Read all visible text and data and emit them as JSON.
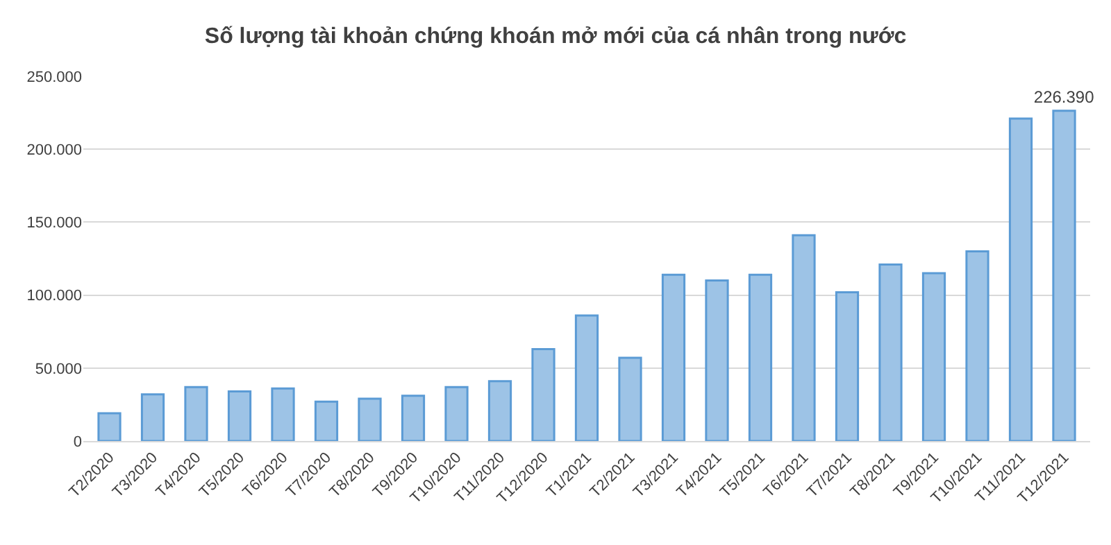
{
  "chart_data": {
    "type": "bar",
    "title": "Số lượng tài khoản chứng khoán mở mới của cá nhân trong nước",
    "categories": [
      "T2/2020",
      "T3/2020",
      "T4/2020",
      "T5/2020",
      "T6/2020",
      "T7/2020",
      "T8/2020",
      "T9/2020",
      "T10/2020",
      "T11/2020",
      "T12/2020",
      "T1/2021",
      "T2/2021",
      "T3/2021",
      "T4/2021",
      "T5/2021",
      "T6/2021",
      "T7/2021",
      "T8/2021",
      "T9/2021",
      "T10/2021",
      "T11/2021",
      "T12/2021"
    ],
    "values": [
      19000,
      32000,
      37000,
      34000,
      36000,
      27000,
      29000,
      31000,
      37000,
      41000,
      63000,
      86000,
      57000,
      114000,
      110000,
      114000,
      141000,
      102000,
      121000,
      115000,
      130000,
      221000,
      226390
    ],
    "value_labels": [
      null,
      null,
      null,
      null,
      null,
      null,
      null,
      null,
      null,
      null,
      null,
      null,
      null,
      null,
      null,
      null,
      null,
      null,
      null,
      null,
      null,
      null,
      "226.390"
    ],
    "color": "#9dc3e6",
    "ylim": [
      0,
      250000
    ],
    "yticks": [
      {
        "value": 0,
        "label": "0"
      },
      {
        "value": 50000,
        "label": "50.000"
      },
      {
        "value": 100000,
        "label": "100.000"
      },
      {
        "value": 150000,
        "label": "150.000"
      },
      {
        "value": 200000,
        "label": "200.000"
      },
      {
        "value": 250000,
        "label": "250.000"
      }
    ],
    "grid": "y"
  }
}
